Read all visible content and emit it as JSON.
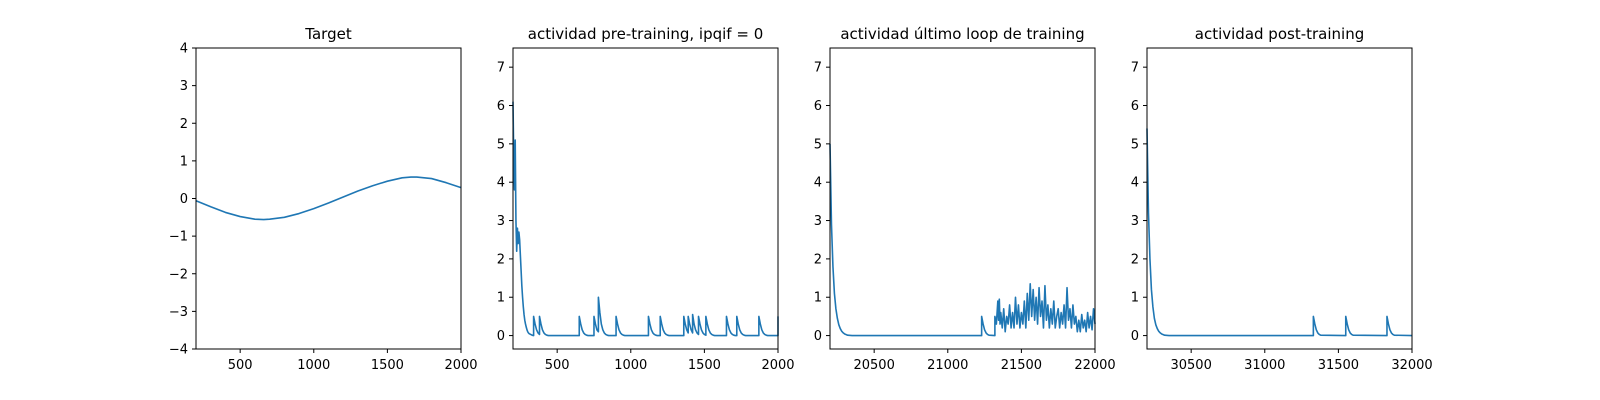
{
  "chart_data": [
    {
      "type": "line",
      "title": "Target",
      "xlim": [
        200,
        2000
      ],
      "ylim": [
        -4,
        4
      ],
      "xticks": [
        500,
        1000,
        1500,
        2000
      ],
      "yticks": [
        -4,
        -3,
        -2,
        -1,
        0,
        1,
        2,
        3,
        4
      ],
      "color": "#1f77b4",
      "x": [
        200,
        300,
        400,
        500,
        600,
        660,
        700,
        800,
        900,
        1000,
        1100,
        1200,
        1300,
        1400,
        1500,
        1600,
        1660,
        1700,
        1800,
        1900,
        2000
      ],
      "y": [
        -0.06,
        -0.22,
        -0.37,
        -0.48,
        -0.55,
        -0.56,
        -0.55,
        -0.5,
        -0.4,
        -0.27,
        -0.12,
        0.04,
        0.2,
        0.34,
        0.46,
        0.55,
        0.57,
        0.57,
        0.53,
        0.42,
        0.29
      ]
    },
    {
      "type": "line",
      "title": "actividad pre-training, ipqif = 0",
      "xlim": [
        200,
        2000
      ],
      "ylim": [
        -0.35,
        7.5
      ],
      "xticks": [
        500,
        1000,
        1500,
        2000
      ],
      "yticks": [
        0,
        1,
        2,
        3,
        4,
        5,
        6,
        7
      ],
      "color": "#1f77b4",
      "x": [
        200,
        205,
        210,
        215,
        220,
        225,
        230,
        235,
        240,
        245,
        250,
        255,
        260,
        265,
        270,
        275,
        280,
        285,
        290,
        295,
        300,
        305,
        310,
        320,
        330,
        340,
        340,
        350,
        360,
        370,
        380,
        380,
        390,
        400,
        410,
        420,
        430,
        440,
        450,
        460,
        470,
        480,
        490,
        500,
        510,
        520,
        530,
        540,
        550,
        560,
        570,
        580,
        590,
        600,
        610,
        620,
        630,
        640,
        650,
        650,
        660,
        670,
        680,
        690,
        700,
        710,
        720,
        730,
        740,
        750,
        750,
        760,
        770,
        780,
        780,
        790,
        800,
        810,
        820,
        830,
        840,
        850,
        860,
        870,
        880,
        890,
        900,
        900,
        910,
        920,
        930,
        940,
        950,
        960,
        970,
        980,
        990,
        1000,
        1010,
        1020,
        1030,
        1040,
        1050,
        1060,
        1070,
        1080,
        1090,
        1100,
        1110,
        1120,
        1120,
        1130,
        1140,
        1150,
        1160,
        1170,
        1180,
        1190,
        1200,
        1200,
        1210,
        1220,
        1230,
        1240,
        1250,
        1260,
        1270,
        1280,
        1290,
        1300,
        1310,
        1320,
        1330,
        1340,
        1350,
        1360,
        1360,
        1370,
        1380,
        1390,
        1390,
        1400,
        1410,
        1420,
        1420,
        1430,
        1440,
        1450,
        1460,
        1460,
        1470,
        1480,
        1490,
        1500,
        1510,
        1510,
        1520,
        1530,
        1540,
        1550,
        1560,
        1570,
        1580,
        1590,
        1600,
        1610,
        1620,
        1630,
        1640,
        1650,
        1650,
        1660,
        1670,
        1680,
        1690,
        1700,
        1710,
        1720,
        1720,
        1730,
        1740,
        1750,
        1760,
        1770,
        1780,
        1790,
        1800,
        1810,
        1820,
        1830,
        1840,
        1850,
        1860,
        1870,
        1870,
        1880,
        1890,
        1900,
        1910,
        1920,
        1930,
        1940,
        1950,
        1960,
        1970,
        1980,
        1990,
        2000,
        2000
      ],
      "y": [
        6.1,
        4.6,
        3.8,
        5.1,
        3.0,
        2.2,
        2.8,
        2.4,
        2.7,
        2.5,
        2.1,
        1.7,
        1.3,
        1.0,
        0.75,
        0.55,
        0.4,
        0.3,
        0.22,
        0.15,
        0.1,
        0.07,
        0.05,
        0.03,
        0.01,
        0.0,
        0.5,
        0.3,
        0.15,
        0.07,
        0.03,
        0.5,
        0.3,
        0.15,
        0.07,
        0.03,
        0.01,
        0.0,
        0.0,
        0.0,
        0.0,
        0.0,
        0.0,
        0.0,
        0.0,
        0.0,
        0.0,
        0.0,
        0.0,
        0.0,
        0.0,
        0.0,
        0.0,
        0.0,
        0.0,
        0.0,
        0.0,
        0.0,
        0.0,
        0.5,
        0.3,
        0.15,
        0.07,
        0.03,
        0.01,
        0.0,
        0.0,
        0.0,
        0.0,
        0.0,
        0.5,
        0.3,
        0.15,
        0.1,
        1.0,
        0.6,
        0.3,
        0.15,
        0.07,
        0.03,
        0.01,
        0.0,
        0.0,
        0.0,
        0.0,
        0.0,
        0.0,
        0.5,
        0.3,
        0.15,
        0.07,
        0.03,
        0.01,
        0.0,
        0.0,
        0.0,
        0.0,
        0.0,
        0.0,
        0.0,
        0.0,
        0.0,
        0.0,
        0.0,
        0.0,
        0.0,
        0.0,
        0.0,
        0.0,
        0.0,
        0.5,
        0.3,
        0.15,
        0.07,
        0.03,
        0.01,
        0.0,
        0.0,
        0.0,
        0.5,
        0.3,
        0.15,
        0.07,
        0.03,
        0.01,
        0.0,
        0.0,
        0.0,
        0.0,
        0.0,
        0.0,
        0.0,
        0.0,
        0.0,
        0.0,
        0.0,
        0.5,
        0.3,
        0.15,
        0.07,
        0.5,
        0.3,
        0.15,
        0.07,
        0.55,
        0.3,
        0.15,
        0.07,
        0.03,
        0.5,
        0.3,
        0.15,
        0.07,
        0.03,
        0.01,
        0.5,
        0.3,
        0.15,
        0.07,
        0.03,
        0.01,
        0.0,
        0.0,
        0.0,
        0.0,
        0.0,
        0.0,
        0.0,
        0.0,
        0.0,
        0.5,
        0.3,
        0.15,
        0.07,
        0.03,
        0.01,
        0.0,
        0.0,
        0.5,
        0.3,
        0.15,
        0.07,
        0.03,
        0.01,
        0.0,
        0.0,
        0.0,
        0.0,
        0.0,
        0.0,
        0.0,
        0.0,
        0.0,
        0.0,
        0.5,
        0.3,
        0.15,
        0.07,
        0.03,
        0.01,
        0.0,
        0.0,
        0.0,
        0.0,
        0.0,
        0.0,
        0.0,
        0.0,
        0.5
      ]
    },
    {
      "type": "line",
      "title": "actividad último loop de training",
      "xlim": [
        20200,
        22000
      ],
      "ylim": [
        -0.35,
        7.5
      ],
      "xticks": [
        20500,
        21000,
        21500,
        22000
      ],
      "yticks": [
        0,
        1,
        2,
        3,
        4,
        5,
        6,
        7
      ],
      "color": "#1f77b4",
      "x": [
        20200,
        20210,
        20220,
        20230,
        20240,
        20250,
        20260,
        20270,
        20280,
        20290,
        20300,
        20320,
        20350,
        21230,
        21230,
        21240,
        21250,
        21260,
        21270,
        21280,
        21320,
        21320,
        21330,
        21340,
        21345,
        21350,
        21355,
        21360,
        21370,
        21380,
        21390,
        21400,
        21410,
        21420,
        21430,
        21440,
        21450,
        21460,
        21470,
        21480,
        21490,
        21500,
        21510,
        21520,
        21530,
        21540,
        21550,
        21560,
        21570,
        21580,
        21590,
        21600,
        21610,
        21620,
        21630,
        21640,
        21650,
        21660,
        21670,
        21680,
        21690,
        21700,
        21710,
        21720,
        21730,
        21740,
        21750,
        21760,
        21770,
        21780,
        21790,
        21800,
        21810,
        21820,
        21830,
        21840,
        21850,
        21860,
        21870,
        21880,
        21890,
        21900,
        21910,
        21920,
        21930,
        21940,
        21950,
        21960,
        21970,
        21980,
        21990,
        22000
      ],
      "y": [
        5.0,
        2.9,
        1.8,
        1.1,
        0.7,
        0.45,
        0.28,
        0.18,
        0.11,
        0.07,
        0.04,
        0.01,
        0.0,
        0.0,
        0.5,
        0.3,
        0.15,
        0.07,
        0.03,
        0.01,
        0.0,
        0.5,
        0.3,
        0.9,
        0.4,
        0.95,
        0.3,
        0.6,
        0.2,
        0.7,
        0.1,
        0.5,
        0.3,
        0.8,
        0.2,
        0.6,
        0.2,
        1.0,
        0.3,
        0.8,
        0.2,
        0.6,
        0.3,
        0.9,
        0.2,
        1.1,
        0.4,
        1.35,
        0.5,
        1.2,
        0.4,
        1.0,
        0.3,
        1.25,
        0.5,
        0.9,
        0.2,
        1.3,
        0.4,
        0.8,
        0.2,
        0.7,
        0.3,
        0.9,
        0.2,
        0.5,
        0.7,
        0.2,
        0.6,
        0.3,
        0.8,
        0.2,
        1.25,
        0.4,
        0.7,
        0.2,
        0.8,
        0.3,
        0.5,
        0.1,
        0.4,
        0.1,
        0.55,
        0.2,
        0.4,
        0.1,
        0.6,
        0.2,
        0.5,
        0.15,
        0.7,
        0.3
      ]
    },
    {
      "type": "line",
      "title": "actividad post-training",
      "xlim": [
        30200,
        32000
      ],
      "ylim": [
        -0.35,
        7.5
      ],
      "xticks": [
        30500,
        31000,
        31500,
        32000
      ],
      "yticks": [
        0,
        1,
        2,
        3,
        4,
        5,
        6,
        7
      ],
      "color": "#1f77b4",
      "x": [
        30200,
        30210,
        30220,
        30230,
        30240,
        30250,
        30260,
        30270,
        30280,
        30290,
        30300,
        30320,
        30350,
        31330,
        31330,
        31340,
        31350,
        31360,
        31370,
        31380,
        31550,
        31550,
        31560,
        31570,
        31580,
        31590,
        31600,
        31830,
        31830,
        31840,
        31850,
        31860,
        31870,
        31880,
        32000
      ],
      "y": [
        5.4,
        3.2,
        2.0,
        1.2,
        0.75,
        0.45,
        0.28,
        0.18,
        0.11,
        0.07,
        0.04,
        0.01,
        0.0,
        0.0,
        0.5,
        0.3,
        0.15,
        0.07,
        0.03,
        0.01,
        0.0,
        0.5,
        0.3,
        0.15,
        0.07,
        0.03,
        0.01,
        0.0,
        0.5,
        0.3,
        0.15,
        0.07,
        0.03,
        0.01,
        0.0
      ]
    }
  ]
}
